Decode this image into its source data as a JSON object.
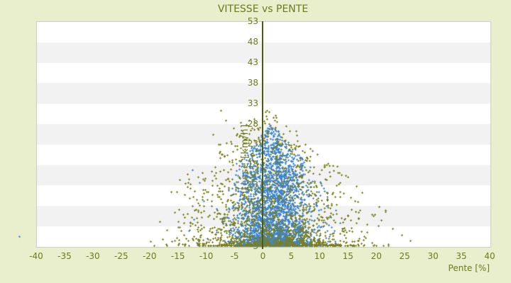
{
  "window": {
    "background_color": "#e9efcd",
    "text_color": "#6d7a1c"
  },
  "chart_data": {
    "type": "scatter",
    "title": "VITESSE vs PENTE",
    "xlabel": "Pente [%]",
    "ylabel": "Vitesse [km/h]",
    "xlim": [
      -40,
      40
    ],
    "ylim": [
      3,
      53
    ],
    "x_ticks": [
      -40,
      -35,
      -30,
      -25,
      -20,
      -15,
      -10,
      -5,
      0,
      5,
      10,
      15,
      20,
      25,
      30,
      35,
      40
    ],
    "y_ticks": [
      53,
      48,
      43,
      38,
      33,
      28,
      23,
      18,
      13,
      8,
      3
    ],
    "grid": "horizontal-bands",
    "band_colors": [
      "#ffffff",
      "#f2f2f2"
    ],
    "plot_border_color": "#cccccc",
    "zero_axis_color": "#4e5a10",
    "legend": "none",
    "seed": 1337,
    "series": [
      {
        "name": "points-bleus-vitesse",
        "color": "#3a86d8",
        "marker": "cross",
        "n": 3000,
        "x_mean": 1.8,
        "x_sd": 3.4,
        "x_clip": [
          -13.5,
          14
        ],
        "env_center": 1.5,
        "env_peak": 27,
        "env_slope": 1.35,
        "env_min": 1.5,
        "y_base": 3,
        "y_pow": 2.1,
        "y_jitter": 0.5
      },
      {
        "name": "points-olive-pente",
        "color": "#7c7f18",
        "marker": "cross",
        "n": 1600,
        "x_mean": 1.5,
        "x_sd": 7.5,
        "x_clip": [
          -23.5,
          27
        ],
        "env_center": 0.5,
        "env_peak": 31,
        "env_slope": 1.05,
        "env_min": 2.0,
        "y_base": 3,
        "y_pow": 2.3,
        "y_jitter": 0.5
      }
    ],
    "extra_points": [
      {
        "series": 0,
        "x": -43.0,
        "y": 5.2
      },
      {
        "series": 0,
        "x": -12.5,
        "y": 20.0
      },
      {
        "series": 0,
        "x": -11.2,
        "y": 17.2
      },
      {
        "series": 0,
        "x": -12.2,
        "y": 9.0
      },
      {
        "series": 0,
        "x": -13.1,
        "y": 6.4
      },
      {
        "series": 0,
        "x": -10.4,
        "y": 13.1
      },
      {
        "series": 0,
        "x": 13.6,
        "y": 8.2
      },
      {
        "series": 0,
        "x": 12.8,
        "y": 11.0
      },
      {
        "series": 1,
        "x": -7.5,
        "y": 33.2
      },
      {
        "series": 1,
        "x": -6.6,
        "y": 31.0
      },
      {
        "series": 1,
        "x": -5.2,
        "y": 29.3
      },
      {
        "series": 1,
        "x": -8.8,
        "y": 27.8
      },
      {
        "series": 1,
        "x": -4.0,
        "y": 30.5
      },
      {
        "series": 1,
        "x": 24.5,
        "y": 5.5
      },
      {
        "series": 1,
        "x": 26.0,
        "y": 4.2
      },
      {
        "series": 1,
        "x": 22.8,
        "y": 7.0
      }
    ]
  }
}
